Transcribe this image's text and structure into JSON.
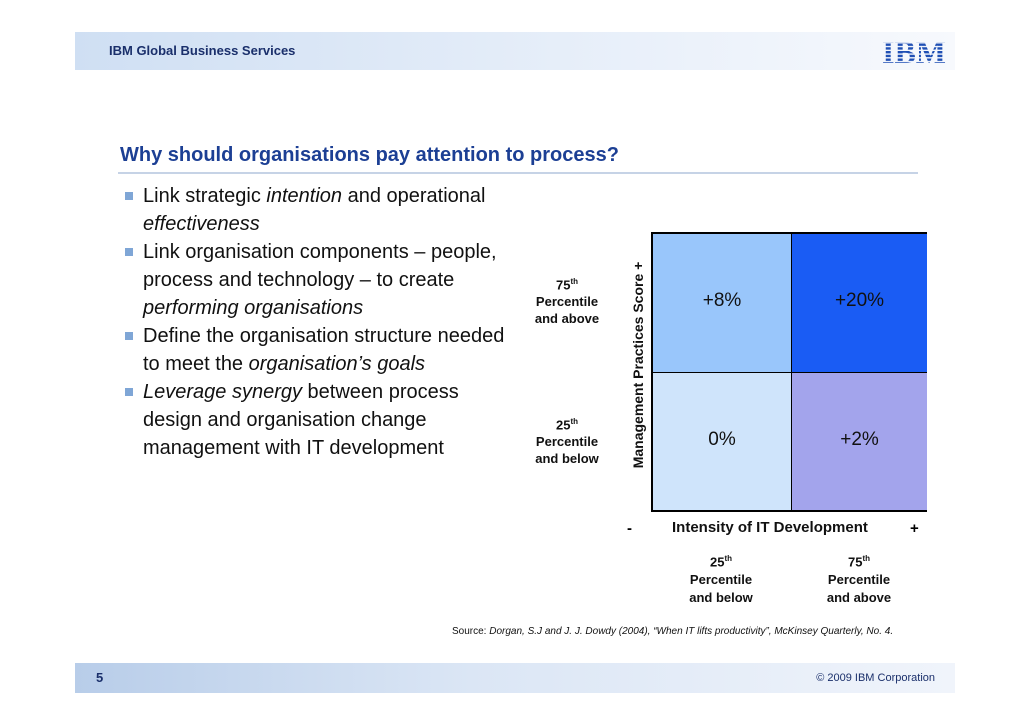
{
  "header": {
    "brand": "IBM Global Business Services",
    "logo": "IBM"
  },
  "title": "Why should organisations pay attention to process?",
  "bullets": [
    {
      "parts": [
        [
          "Link strategic ",
          false
        ],
        [
          "intention",
          true
        ],
        [
          " and operational ",
          false
        ],
        [
          "effectiveness",
          true
        ]
      ]
    },
    {
      "parts": [
        [
          "Link organisation components – people, process and technology – to create ",
          false
        ],
        [
          "performing organisations",
          true
        ]
      ]
    },
    {
      "parts": [
        [
          "Define the organisation structure needed to meet the ",
          false
        ],
        [
          "organisation’s goals",
          true
        ]
      ]
    },
    {
      "parts": [
        [
          "Leverage synergy",
          true
        ],
        [
          " between process design and organisation change management with IT development",
          false
        ]
      ]
    }
  ],
  "matrix": {
    "y_axis_title": "Management Practices Score +",
    "y_labels": {
      "top": {
        "num": "75",
        "sup": "th",
        "line2": "Percentile",
        "line3": "and above"
      },
      "bottom": {
        "num": "25",
        "sup": "th",
        "line2": "Percentile",
        "line3": "and below"
      }
    },
    "cells": {
      "top_left": "+8%",
      "top_right": "+20%",
      "bottom_left": "0%",
      "bottom_right": "+2%"
    },
    "colors": {
      "top_left": "#99c6fb",
      "top_right": "#1a5cf4",
      "bottom_left": "#cfe4fb",
      "bottom_right": "#a3a4ec"
    },
    "x_minus": "-",
    "x_plus": "+",
    "x_axis_title": "Intensity of IT Development",
    "x_labels": {
      "left": {
        "num": "25",
        "sup": "th",
        "line2": "Percentile",
        "line3": "and below"
      },
      "right": {
        "num": "75",
        "sup": "th",
        "line2": "Percentile",
        "line3": "and above"
      }
    }
  },
  "source": {
    "prefix": "Source: ",
    "text": "Dorgan, S.J and J. J. Dowdy (2004), “When IT lifts productivity”, McKinsey Quarterly, No. 4."
  },
  "footer": {
    "page": "5",
    "copyright": "© 2009 IBM Corporation"
  }
}
